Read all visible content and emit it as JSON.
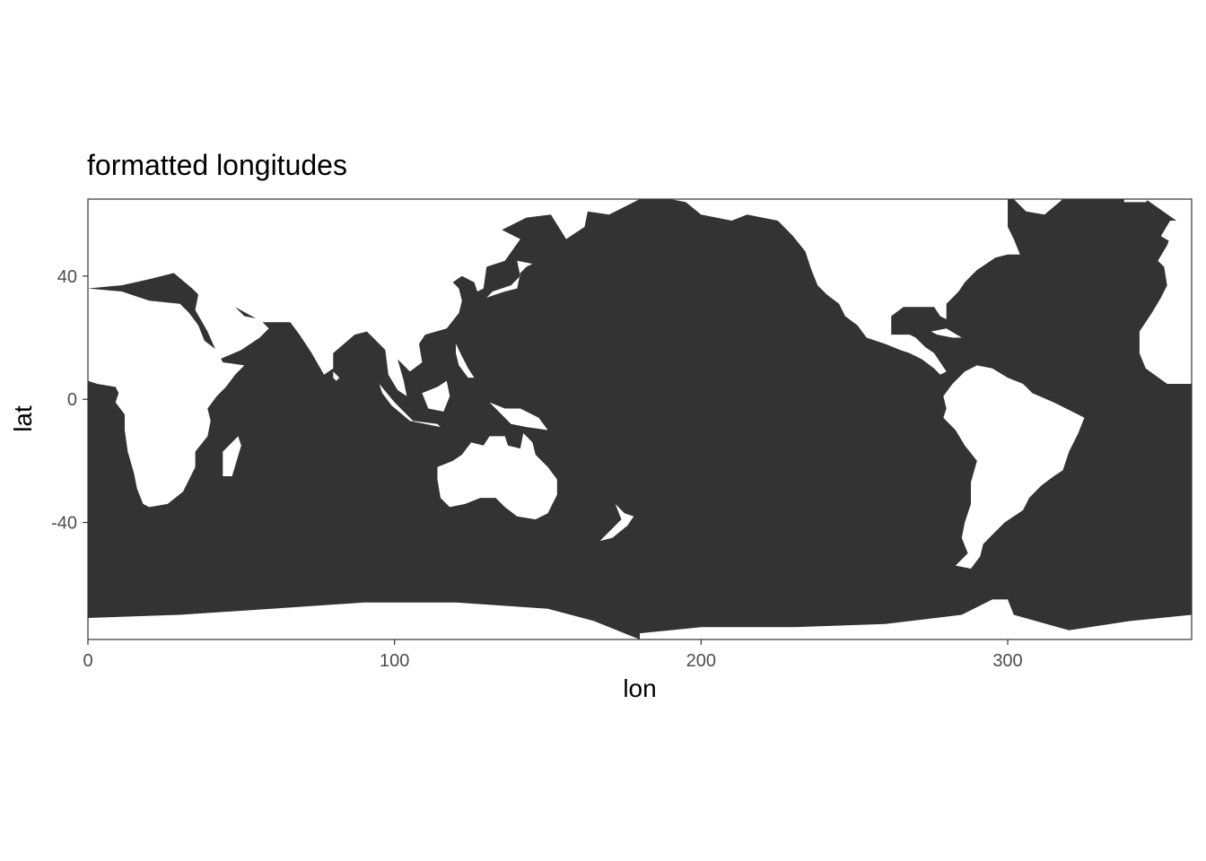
{
  "chart_data": {
    "type": "heatmap",
    "title": "formatted longitudes",
    "xlabel": "lon",
    "ylabel": "lat",
    "xlim": [
      0,
      360
    ],
    "ylim": [
      -78,
      65
    ],
    "x_ticks": [
      0,
      100,
      200,
      300
    ],
    "y_ticks": [
      -40,
      0,
      40
    ],
    "x_tick_labels": [
      "0",
      "100",
      "200",
      "300"
    ],
    "y_tick_labels": [
      "-40",
      "0",
      "40"
    ],
    "grid": false,
    "legend": "none",
    "fill_color": "#333333",
    "background": "#ffffff",
    "description_values": "ocean mask cells shaded dark; land cells white",
    "land_polygons_lonlat": {
      "africa": [
        [
          0,
          6
        ],
        [
          3,
          5
        ],
        [
          9,
          4
        ],
        [
          10,
          2
        ],
        [
          9,
          -1
        ],
        [
          12,
          -5
        ],
        [
          12,
          -10
        ],
        [
          13,
          -17
        ],
        [
          15,
          -24
        ],
        [
          16,
          -29
        ],
        [
          18,
          -34
        ],
        [
          20,
          -35
        ],
        [
          26,
          -34
        ],
        [
          31,
          -30
        ],
        [
          33,
          -26
        ],
        [
          35,
          -22
        ],
        [
          35,
          -17
        ],
        [
          39,
          -12
        ],
        [
          40,
          -7
        ],
        [
          39,
          -3
        ],
        [
          42,
          1
        ],
        [
          45,
          4
        ],
        [
          48,
          8
        ],
        [
          51,
          11
        ],
        [
          44,
          12
        ],
        [
          42,
          16
        ],
        [
          38,
          19
        ],
        [
          36,
          24
        ],
        [
          33,
          28
        ],
        [
          30,
          31
        ],
        [
          20,
          32
        ],
        [
          11,
          35
        ],
        [
          0,
          36
        ]
      ],
      "europe_asia": [
        [
          0,
          36
        ],
        [
          11,
          37
        ],
        [
          20,
          39
        ],
        [
          28,
          41
        ],
        [
          34,
          36
        ],
        [
          36,
          34
        ],
        [
          35,
          29
        ],
        [
          39,
          22
        ],
        [
          43,
          13
        ],
        [
          50,
          16
        ],
        [
          56,
          20
        ],
        [
          59,
          23
        ],
        [
          56,
          26
        ],
        [
          51,
          27
        ],
        [
          48,
          30
        ],
        [
          57,
          25
        ],
        [
          62,
          25
        ],
        [
          66,
          25
        ],
        [
          69,
          21
        ],
        [
          73,
          15
        ],
        [
          77,
          8
        ],
        [
          80,
          10
        ],
        [
          80,
          15
        ],
        [
          87,
          21
        ],
        [
          91,
          22
        ],
        [
          94,
          19
        ],
        [
          97,
          16
        ],
        [
          98,
          8
        ],
        [
          101,
          3
        ],
        [
          104,
          1
        ],
        [
          103,
          6
        ],
        [
          101,
          13
        ],
        [
          105,
          9
        ],
        [
          109,
          12
        ],
        [
          108,
          18
        ],
        [
          110,
          21
        ],
        [
          117,
          23
        ],
        [
          121,
          28
        ],
        [
          122,
          32
        ],
        [
          121,
          36
        ],
        [
          119,
          38
        ],
        [
          122,
          40
        ],
        [
          126,
          38
        ],
        [
          127,
          35
        ],
        [
          129,
          36
        ],
        [
          130,
          43
        ],
        [
          136,
          45
        ],
        [
          141,
          52
        ],
        [
          135,
          55
        ],
        [
          143,
          59
        ],
        [
          151,
          60
        ],
        [
          156,
          52
        ],
        [
          162,
          56
        ],
        [
          163,
          61
        ],
        [
          170,
          60
        ],
        [
          180,
          65
        ],
        [
          0,
          65
        ]
      ],
      "north_america": [
        [
          190,
          65
        ],
        [
          195,
          64
        ],
        [
          200,
          60
        ],
        [
          210,
          58
        ],
        [
          215,
          60
        ],
        [
          225,
          58
        ],
        [
          230,
          53
        ],
        [
          234,
          48
        ],
        [
          236,
          42
        ],
        [
          238,
          37
        ],
        [
          241,
          34
        ],
        [
          245,
          31
        ],
        [
          247,
          27
        ],
        [
          251,
          24
        ],
        [
          254,
          20
        ],
        [
          260,
          18
        ],
        [
          265,
          16
        ],
        [
          268,
          15
        ],
        [
          272,
          13
        ],
        [
          276,
          10
        ],
        [
          278,
          8
        ],
        [
          280,
          9
        ],
        [
          278,
          12
        ],
        [
          276,
          15
        ],
        [
          273,
          17
        ],
        [
          270,
          20
        ],
        [
          268,
          21
        ],
        [
          262,
          21
        ],
        [
          262,
          27
        ],
        [
          266,
          30
        ],
        [
          272,
          30
        ],
        [
          276,
          30
        ],
        [
          278,
          27
        ],
        [
          280,
          26
        ],
        [
          280,
          31
        ],
        [
          284,
          35
        ],
        [
          286,
          38
        ],
        [
          288,
          40
        ],
        [
          290,
          42
        ],
        [
          293,
          44
        ],
        [
          296,
          46
        ],
        [
          300,
          47
        ],
        [
          304,
          47
        ],
        [
          302,
          52
        ],
        [
          300,
          56
        ],
        [
          300,
          60
        ],
        [
          300,
          65
        ]
      ],
      "greenland": [
        [
          302,
          65
        ],
        [
          306,
          61
        ],
        [
          312,
          60
        ],
        [
          318,
          65
        ]
      ],
      "south_america": [
        [
          279,
          1
        ],
        [
          282,
          5
        ],
        [
          286,
          9
        ],
        [
          290,
          11
        ],
        [
          295,
          10
        ],
        [
          300,
          7
        ],
        [
          305,
          5
        ],
        [
          308,
          2
        ],
        [
          315,
          -1
        ],
        [
          321,
          -4
        ],
        [
          325,
          -6
        ],
        [
          323,
          -11
        ],
        [
          320,
          -17
        ],
        [
          318,
          -23
        ],
        [
          315,
          -25
        ],
        [
          311,
          -28
        ],
        [
          307,
          -32
        ],
        [
          305,
          -36
        ],
        [
          299,
          -40
        ],
        [
          296,
          -43
        ],
        [
          292,
          -47
        ],
        [
          291,
          -51
        ],
        [
          288,
          -55
        ],
        [
          283,
          -54
        ],
        [
          287,
          -50
        ],
        [
          285,
          -45
        ],
        [
          286,
          -40
        ],
        [
          288,
          -34
        ],
        [
          288,
          -27
        ],
        [
          290,
          -20
        ],
        [
          286,
          -15
        ],
        [
          283,
          -10
        ],
        [
          279,
          -6
        ],
        [
          280,
          -3
        ]
      ],
      "australia": [
        [
          114,
          -22
        ],
        [
          114,
          -26
        ],
        [
          115,
          -32
        ],
        [
          118,
          -35
        ],
        [
          123,
          -34
        ],
        [
          128,
          -32
        ],
        [
          133,
          -32
        ],
        [
          136,
          -35
        ],
        [
          140,
          -38
        ],
        [
          146,
          -39
        ],
        [
          150,
          -37
        ],
        [
          153,
          -31
        ],
        [
          153,
          -26
        ],
        [
          150,
          -22
        ],
        [
          146,
          -18
        ],
        [
          145,
          -14
        ],
        [
          142,
          -11
        ],
        [
          141,
          -16
        ],
        [
          137,
          -15
        ],
        [
          136,
          -12
        ],
        [
          131,
          -12
        ],
        [
          129,
          -15
        ],
        [
          125,
          -14
        ],
        [
          122,
          -18
        ],
        [
          119,
          -20
        ]
      ],
      "madagascar": [
        [
          44,
          -25
        ],
        [
          47,
          -25
        ],
        [
          50,
          -15
        ],
        [
          49,
          -12
        ],
        [
          44,
          -17
        ]
      ],
      "antarctica_a": [
        [
          0,
          -71
        ],
        [
          30,
          -70
        ],
        [
          60,
          -68
        ],
        [
          90,
          -66
        ],
        [
          120,
          -66
        ],
        [
          150,
          -68
        ],
        [
          165,
          -72
        ],
        [
          175,
          -76
        ],
        [
          180,
          -78
        ],
        [
          0,
          -78
        ]
      ],
      "antarctica_b": [
        [
          180,
          -76
        ],
        [
          200,
          -74
        ],
        [
          230,
          -74
        ],
        [
          260,
          -73
        ],
        [
          285,
          -70
        ],
        [
          295,
          -65
        ],
        [
          300,
          -65
        ],
        [
          302,
          -70
        ],
        [
          320,
          -75
        ],
        [
          340,
          -72
        ],
        [
          360,
          -70
        ],
        [
          360,
          -78
        ],
        [
          180,
          -78
        ]
      ],
      "europe_east": [
        [
          345,
          65
        ],
        [
          360,
          65
        ],
        [
          360,
          5
        ],
        [
          352,
          5
        ],
        [
          345,
          10
        ],
        [
          343,
          15
        ],
        [
          343,
          22
        ],
        [
          347,
          28
        ],
        [
          350,
          33
        ],
        [
          352,
          37
        ],
        [
          351,
          43
        ],
        [
          349,
          45
        ],
        [
          352,
          50
        ],
        [
          355,
          58
        ]
      ],
      "japan": [
        [
          130,
          33
        ],
        [
          133,
          34
        ],
        [
          136,
          35
        ],
        [
          140,
          36
        ],
        [
          141,
          41
        ],
        [
          143,
          43
        ],
        [
          145,
          44
        ],
        [
          140,
          45
        ],
        [
          141,
          40
        ],
        [
          138,
          37
        ],
        [
          132,
          35
        ]
      ],
      "borneo": [
        [
          109,
          2
        ],
        [
          111,
          -3
        ],
        [
          116,
          -4
        ],
        [
          118,
          1
        ],
        [
          117,
          6
        ],
        [
          114,
          4
        ]
      ],
      "sumatra_java": [
        [
          95,
          5
        ],
        [
          100,
          -1
        ],
        [
          104,
          -5
        ],
        [
          106,
          -7
        ],
        [
          114,
          -8
        ],
        [
          115,
          -9
        ],
        [
          105,
          -7
        ],
        [
          99,
          -2
        ],
        [
          96,
          2
        ]
      ],
      "new_guinea": [
        [
          131,
          -1
        ],
        [
          136,
          -3
        ],
        [
          141,
          -3
        ],
        [
          147,
          -6
        ],
        [
          150,
          -10
        ],
        [
          143,
          -9
        ],
        [
          138,
          -8
        ],
        [
          134,
          -4
        ]
      ],
      "new_zealand": [
        [
          172,
          -34
        ],
        [
          175,
          -37
        ],
        [
          178,
          -38
        ],
        [
          176,
          -41
        ],
        [
          171,
          -45
        ],
        [
          167,
          -46
        ],
        [
          171,
          -42
        ],
        [
          174,
          -39
        ]
      ],
      "philippines": [
        [
          120,
          18
        ],
        [
          122,
          14
        ],
        [
          124,
          10
        ],
        [
          126,
          7
        ],
        [
          124,
          7
        ],
        [
          121,
          11
        ],
        [
          120,
          15
        ]
      ],
      "sri_lanka": [
        [
          80,
          9
        ],
        [
          82,
          7
        ],
        [
          81,
          6
        ],
        [
          80,
          7
        ]
      ],
      "uk_ireland": [
        [
          355,
          50
        ],
        [
          358,
          51
        ],
        [
          358,
          58
        ],
        [
          353,
          58
        ],
        [
          350,
          53
        ]
      ],
      "cuba": [
        [
          275,
          22
        ],
        [
          280,
          23
        ],
        [
          285,
          20
        ],
        [
          282,
          20
        ],
        [
          277,
          21
        ]
      ],
      "iceland": [
        [
          338,
          64
        ],
        [
          345,
          64
        ],
        [
          346,
          65
        ],
        [
          338,
          65
        ]
      ]
    }
  }
}
